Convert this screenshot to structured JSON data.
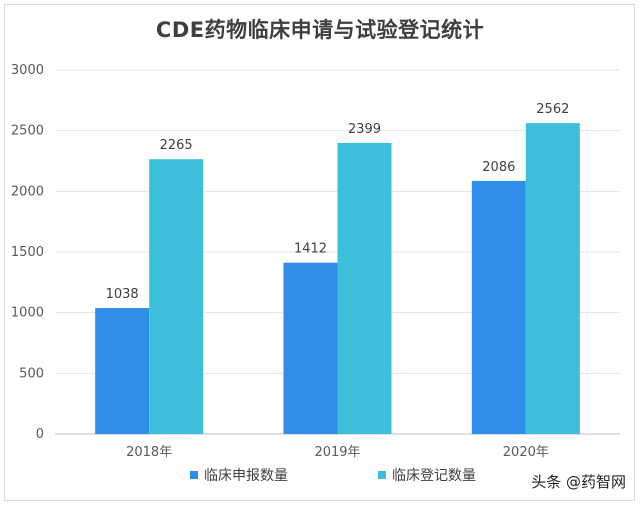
{
  "chart_data": {
    "type": "bar",
    "title": "CDE药物临床申请与试验登记统计",
    "categories": [
      "2018年",
      "2019年",
      "2020年"
    ],
    "series": [
      {
        "name": "临床申报数量",
        "values": [
          1038,
          1412,
          2086
        ],
        "color": "#2e8ee8"
      },
      {
        "name": "临床登记数量",
        "values": [
          2265,
          2399,
          2562
        ],
        "color": "#3dbfdc"
      }
    ],
    "ylim": [
      0,
      3000
    ],
    "yticks": [
      "0",
      "500",
      "1000",
      "1500",
      "2000",
      "2500",
      "3000"
    ],
    "grid": true,
    "legend_position": "bottom"
  },
  "watermark": "头条 @药智网"
}
